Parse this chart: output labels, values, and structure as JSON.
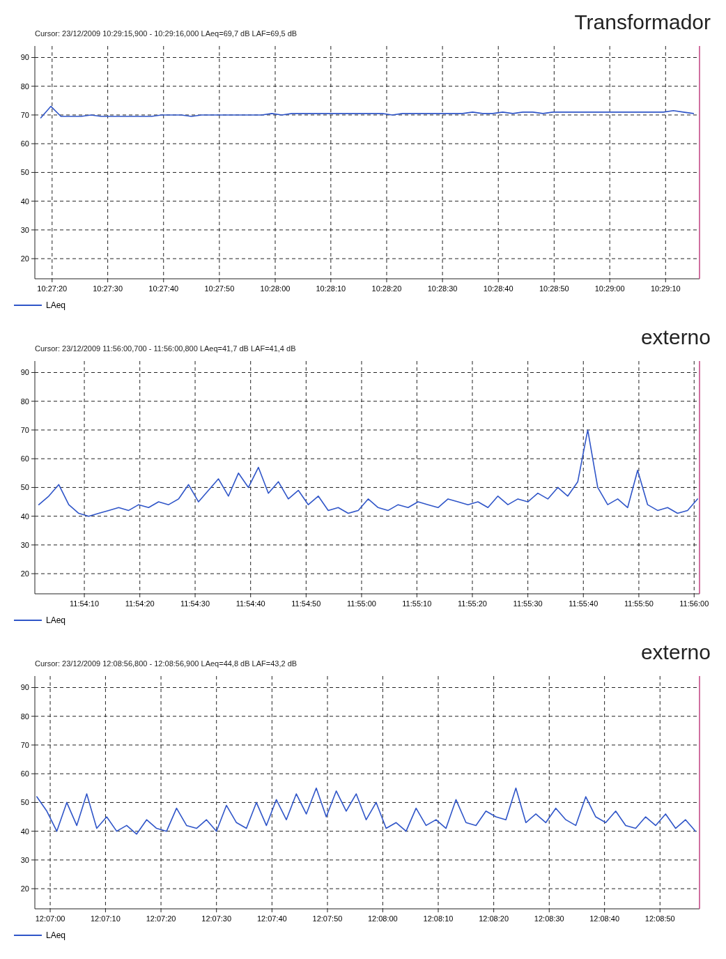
{
  "chart_data": [
    {
      "type": "line",
      "title": "Transformador",
      "subtitle": "Cursor: 23/12/2009 10:29:15,900 - 10:29:16,000 LAeq=69,7 dB LAF=69,5 dB",
      "grid": true,
      "legend": "bottom left",
      "xlim": [
        10.4547,
        10.4878
      ],
      "ylim": [
        13,
        94
      ],
      "yticks": [
        20,
        30,
        40,
        50,
        60,
        70,
        80,
        90
      ],
      "xticks": [
        {
          "value": 10.45556,
          "label": "10:27:20"
        },
        {
          "value": 10.45833,
          "label": "10:27:30"
        },
        {
          "value": 10.46111,
          "label": "10:27:40"
        },
        {
          "value": 10.46389,
          "label": "10:27:50"
        },
        {
          "value": 10.46667,
          "label": "10:28:00"
        },
        {
          "value": 10.46944,
          "label": "10:28:10"
        },
        {
          "value": 10.47222,
          "label": "10:28:20"
        },
        {
          "value": 10.475,
          "label": "10:28:30"
        },
        {
          "value": 10.47778,
          "label": "10:28:40"
        },
        {
          "value": 10.48056,
          "label": "10:28:50"
        },
        {
          "value": 10.48333,
          "label": "10:29:00"
        },
        {
          "value": 10.48611,
          "label": "10:29:10"
        }
      ],
      "x": [
        10.455,
        10.4555,
        10.456,
        10.4565,
        10.457,
        10.4575,
        10.458,
        10.4585,
        10.459,
        10.4595,
        10.46,
        10.4605,
        10.461,
        10.4615,
        10.462,
        10.4625,
        10.463,
        10.4635,
        10.464,
        10.4645,
        10.465,
        10.4655,
        10.466,
        10.4665,
        10.467,
        10.4675,
        10.468,
        10.4685,
        10.469,
        10.4695,
        10.47,
        10.4705,
        10.471,
        10.4715,
        10.472,
        10.4725,
        10.473,
        10.4735,
        10.474,
        10.4745,
        10.475,
        10.4755,
        10.476,
        10.4765,
        10.477,
        10.4775,
        10.478,
        10.4785,
        10.479,
        10.4795,
        10.48,
        10.4805,
        10.481,
        10.4815,
        10.482,
        10.4825,
        10.483,
        10.4835,
        10.484,
        10.4845,
        10.485,
        10.4855,
        10.486,
        10.4865,
        10.487,
        10.4875
      ],
      "series": [
        {
          "name": "LAeq",
          "color": "#2f55c8",
          "values": [
            69,
            73,
            69.5,
            69.5,
            69.5,
            70,
            69.5,
            69.5,
            69.5,
            69.5,
            69.5,
            69.5,
            70,
            70,
            70,
            69.5,
            70,
            70,
            70,
            70,
            70,
            70,
            70,
            70.5,
            70,
            70.5,
            70.5,
            70.5,
            70.5,
            70.5,
            70.5,
            70.5,
            70.5,
            70.5,
            70.5,
            70,
            70.5,
            70.5,
            70.5,
            70.5,
            70.5,
            70.5,
            70.5,
            71,
            70.5,
            70.5,
            71,
            70.5,
            71,
            71,
            70.5,
            71,
            71,
            71,
            71,
            71,
            71,
            71,
            71,
            71,
            71,
            71,
            71,
            71.5,
            71,
            70.5
          ]
        }
      ]
    },
    {
      "type": "line",
      "title": "externo",
      "subtitle": "Cursor: 23/12/2009 11:56:00,700 - 11:56:00,800 LAeq=41,7 dB LAF=41,4 dB",
      "grid": true,
      "legend": "bottom left",
      "xlim": [
        11.9003,
        11.9336
      ],
      "ylim": [
        13,
        94
      ],
      "yticks": [
        20,
        30,
        40,
        50,
        60,
        70,
        80,
        90
      ],
      "xticks": [
        {
          "value": 11.90278,
          "label": "11:54:10"
        },
        {
          "value": 11.90556,
          "label": "11:54:20"
        },
        {
          "value": 11.90833,
          "label": "11:54:30"
        },
        {
          "value": 11.91111,
          "label": "11:54:40"
        },
        {
          "value": 11.91389,
          "label": "11:54:50"
        },
        {
          "value": 11.91667,
          "label": "11:55:00"
        },
        {
          "value": 11.91944,
          "label": "11:55:10"
        },
        {
          "value": 11.92222,
          "label": "11:55:20"
        },
        {
          "value": 11.925,
          "label": "11:55:30"
        },
        {
          "value": 11.92778,
          "label": "11:55:40"
        },
        {
          "value": 11.93056,
          "label": "11:55:50"
        },
        {
          "value": 11.93333,
          "label": "11:56:00"
        }
      ],
      "x": [
        11.9005,
        11.901,
        11.9015,
        11.902,
        11.9025,
        11.903,
        11.9035,
        11.904,
        11.9045,
        11.905,
        11.9055,
        11.906,
        11.9065,
        11.907,
        11.9075,
        11.908,
        11.9085,
        11.909,
        11.9095,
        11.91,
        11.9105,
        11.911,
        11.9115,
        11.912,
        11.9125,
        11.913,
        11.9135,
        11.914,
        11.9145,
        11.915,
        11.9155,
        11.916,
        11.9165,
        11.917,
        11.9175,
        11.918,
        11.9185,
        11.919,
        11.9195,
        11.92,
        11.9205,
        11.921,
        11.9215,
        11.922,
        11.9225,
        11.923,
        11.9235,
        11.924,
        11.9245,
        11.925,
        11.9255,
        11.926,
        11.9265,
        11.927,
        11.9275,
        11.928,
        11.9285,
        11.929,
        11.9295,
        11.93,
        11.9305,
        11.931,
        11.9315,
        11.932,
        11.9325,
        11.933,
        11.9335
      ],
      "series": [
        {
          "name": "LAeq",
          "color": "#2f55c8",
          "values": [
            44,
            47,
            51,
            44,
            41,
            40,
            41,
            42,
            43,
            42,
            44,
            43,
            45,
            44,
            46,
            51,
            45,
            49,
            53,
            47,
            55,
            50,
            57,
            48,
            52,
            46,
            49,
            44,
            47,
            42,
            43,
            41,
            42,
            46,
            43,
            42,
            44,
            43,
            45,
            44,
            43,
            46,
            45,
            44,
            45,
            43,
            47,
            44,
            46,
            45,
            48,
            46,
            50,
            47,
            52,
            70,
            50,
            44,
            46,
            43,
            56,
            44,
            42,
            43,
            41,
            42,
            46
          ]
        }
      ]
    },
    {
      "type": "line",
      "title": "externo",
      "subtitle": "Cursor: 23/12/2009 12:08:56,800 - 12:08:56,900 LAeq=44,8 dB LAF=43,2 dB",
      "grid": true,
      "legend": "bottom left",
      "xlim": [
        12.1159,
        12.1492
      ],
      "ylim": [
        13,
        94
      ],
      "yticks": [
        20,
        30,
        40,
        50,
        60,
        70,
        80,
        90
      ],
      "xticks": [
        {
          "value": 12.11667,
          "label": "12:07:00"
        },
        {
          "value": 12.11944,
          "label": "12:07:10"
        },
        {
          "value": 12.12222,
          "label": "12:07:20"
        },
        {
          "value": 12.125,
          "label": "12:07:30"
        },
        {
          "value": 12.12778,
          "label": "12:07:40"
        },
        {
          "value": 12.13056,
          "label": "12:07:50"
        },
        {
          "value": 12.13333,
          "label": "12:08:00"
        },
        {
          "value": 12.13611,
          "label": "12:08:10"
        },
        {
          "value": 12.13889,
          "label": "12:08:20"
        },
        {
          "value": 12.14167,
          "label": "12:08:30"
        },
        {
          "value": 12.14444,
          "label": "12:08:40"
        },
        {
          "value": 12.14722,
          "label": "12:08:50"
        }
      ],
      "x": [
        12.116,
        12.1165,
        12.117,
        12.1175,
        12.118,
        12.1185,
        12.119,
        12.1195,
        12.12,
        12.1205,
        12.121,
        12.1215,
        12.122,
        12.1225,
        12.123,
        12.1235,
        12.124,
        12.1245,
        12.125,
        12.1255,
        12.126,
        12.1265,
        12.127,
        12.1275,
        12.128,
        12.1285,
        12.129,
        12.1295,
        12.13,
        12.1305,
        12.131,
        12.1315,
        12.132,
        12.1325,
        12.133,
        12.1335,
        12.134,
        12.1345,
        12.135,
        12.1355,
        12.136,
        12.1365,
        12.137,
        12.1375,
        12.138,
        12.1385,
        12.139,
        12.1395,
        12.14,
        12.1405,
        12.141,
        12.1415,
        12.142,
        12.1425,
        12.143,
        12.1435,
        12.144,
        12.1445,
        12.145,
        12.1455,
        12.146,
        12.1465,
        12.147,
        12.1475,
        12.148,
        12.1485,
        12.149
      ],
      "series": [
        {
          "name": "LAeq",
          "color": "#2f55c8",
          "values": [
            52,
            47,
            40,
            50,
            42,
            53,
            41,
            45,
            40,
            42,
            39,
            44,
            41,
            40,
            48,
            42,
            41,
            44,
            40,
            49,
            43,
            41,
            50,
            42,
            51,
            44,
            53,
            46,
            55,
            45,
            54,
            47,
            53,
            44,
            50,
            41,
            43,
            40,
            48,
            42,
            44,
            41,
            51,
            43,
            42,
            47,
            45,
            44,
            55,
            43,
            46,
            43,
            48,
            44,
            42,
            52,
            45,
            43,
            47,
            42,
            41,
            45,
            42,
            46,
            41,
            44,
            40
          ]
        }
      ]
    }
  ]
}
